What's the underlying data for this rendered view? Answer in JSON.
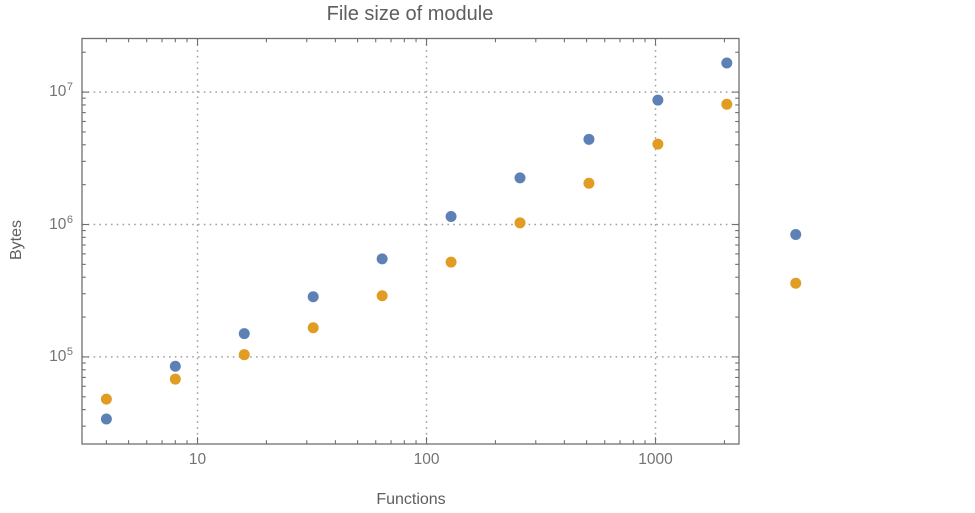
{
  "figure": {
    "title": "File size of module",
    "xlabel": "Functions",
    "ylabel": "Bytes"
  },
  "chart_data": {
    "type": "scatter",
    "title": "File size of module",
    "xlabel": "Functions",
    "ylabel": "Bytes",
    "x_scale": "log",
    "y_scale": "log",
    "x_range": [
      3.13,
      2315
    ],
    "y_range": [
      22000,
      25400000
    ],
    "x_ticks": {
      "major": [
        10,
        100,
        1000
      ],
      "labels": [
        "10",
        "100",
        "1000"
      ]
    },
    "y_ticks": {
      "major": [
        100000,
        1000000,
        10000000
      ],
      "labels": [
        {
          "base": "10",
          "exp": "5"
        },
        {
          "base": "10",
          "exp": "6"
        },
        {
          "base": "10",
          "exp": "7"
        }
      ]
    },
    "grid": {
      "show": true,
      "style": "dotted",
      "at": "major"
    },
    "legend": "none",
    "point_radius_px": 5.5,
    "clip_points_to_frame": false,
    "colors": {
      "series_blue": "#5e81b5",
      "series_orange": "#e19c24",
      "frame": "#6f6f6f",
      "grid": "#a0a0a0",
      "text": "#5e5e5e",
      "tick_text": "#747474",
      "background": "#ffffff"
    },
    "series": [
      {
        "name": "series-1-blue",
        "color": "#5e81b5",
        "points": [
          [
            4,
            34000
          ],
          [
            8,
            85000
          ],
          [
            16,
            150000
          ],
          [
            32,
            285000
          ],
          [
            64,
            550000
          ],
          [
            128,
            1150000
          ],
          [
            256,
            2250000
          ],
          [
            512,
            4400000
          ],
          [
            1024,
            8700000
          ],
          [
            2048,
            16600000
          ],
          [
            4096,
            840000
          ]
        ]
      },
      {
        "name": "series-2-orange",
        "color": "#e19c24",
        "points": [
          [
            4,
            48000
          ],
          [
            8,
            68000
          ],
          [
            16,
            104000
          ],
          [
            32,
            166000
          ],
          [
            64,
            290000
          ],
          [
            128,
            520000
          ],
          [
            256,
            1030000
          ],
          [
            512,
            2050000
          ],
          [
            1024,
            4050000
          ],
          [
            2048,
            8100000
          ],
          [
            4096,
            360000
          ]
        ]
      }
    ]
  }
}
